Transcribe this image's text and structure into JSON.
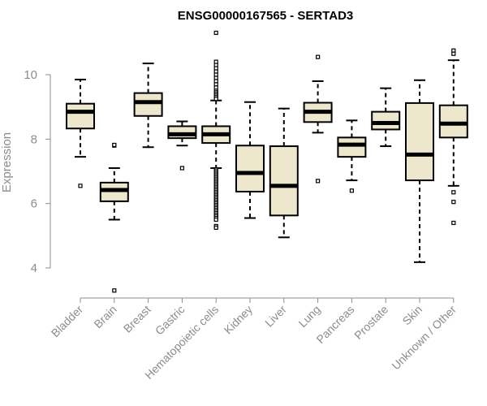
{
  "chart_data": {
    "type": "boxplot",
    "title": "ENSG00000167565 - SERTAD3",
    "xlabel": "",
    "ylabel": "Expression",
    "ylim": [
      3.0,
      11.5
    ],
    "yticks": [
      4,
      6,
      8,
      10
    ],
    "grid": false,
    "colors": {
      "box_fill": "#ede8cd",
      "stroke": "#000000",
      "axis": "#8c8c8c"
    },
    "categories": [
      "Bladder",
      "Brain",
      "Breast",
      "Gastric",
      "Hematopoietic cells",
      "Kidney",
      "Liver",
      "Lung",
      "Pancreas",
      "Prostate",
      "Skin",
      "Unknown / Other"
    ],
    "boxes": [
      {
        "whisker_low": 7.45,
        "q1": 8.33,
        "median": 8.85,
        "q3": 9.1,
        "whisker_high": 9.85,
        "outliers": [
          6.55
        ]
      },
      {
        "whisker_low": 5.5,
        "q1": 6.07,
        "median": 6.42,
        "q3": 6.65,
        "whisker_high": 7.1,
        "outliers": [
          7.8,
          7.82,
          3.3
        ]
      },
      {
        "whisker_low": 7.75,
        "q1": 8.72,
        "median": 9.15,
        "q3": 9.43,
        "whisker_high": 10.35,
        "outliers": []
      },
      {
        "whisker_low": 7.8,
        "q1": 8.03,
        "median": 8.15,
        "q3": 8.4,
        "whisker_high": 8.55,
        "outliers": [
          7.1
        ]
      },
      {
        "whisker_low": 7.1,
        "q1": 7.88,
        "median": 8.15,
        "q3": 8.4,
        "whisker_high": 9.2,
        "outliers": [
          11.3,
          10.4,
          10.3,
          10.2,
          10.1,
          10.0,
          9.9,
          9.8,
          9.7,
          9.6,
          9.5,
          9.45,
          9.4,
          9.35,
          9.3,
          9.25,
          7.05,
          7.0,
          6.95,
          6.9,
          6.85,
          6.8,
          6.75,
          6.7,
          6.65,
          6.6,
          6.55,
          6.5,
          6.45,
          6.4,
          6.35,
          6.3,
          6.25,
          6.2,
          6.15,
          6.1,
          6.05,
          6.0,
          5.95,
          5.9,
          5.85,
          5.8,
          5.75,
          5.7,
          5.65,
          5.6,
          5.55,
          5.5,
          5.3,
          5.25
        ]
      },
      {
        "whisker_low": 5.55,
        "q1": 6.37,
        "median": 6.95,
        "q3": 7.8,
        "whisker_high": 9.15,
        "outliers": []
      },
      {
        "whisker_low": 4.95,
        "q1": 5.63,
        "median": 6.55,
        "q3": 7.78,
        "whisker_high": 8.95,
        "outliers": []
      },
      {
        "whisker_low": 8.2,
        "q1": 8.53,
        "median": 8.85,
        "q3": 9.13,
        "whisker_high": 9.8,
        "outliers": [
          10.55,
          6.7
        ]
      },
      {
        "whisker_low": 6.72,
        "q1": 7.45,
        "median": 7.83,
        "q3": 8.05,
        "whisker_high": 8.58,
        "outliers": [
          6.4
        ]
      },
      {
        "whisker_low": 7.78,
        "q1": 8.3,
        "median": 8.5,
        "q3": 8.85,
        "whisker_high": 9.58,
        "outliers": []
      },
      {
        "whisker_low": 4.18,
        "q1": 6.72,
        "median": 7.52,
        "q3": 9.12,
        "whisker_high": 9.83,
        "outliers": []
      },
      {
        "whisker_low": 6.55,
        "q1": 8.05,
        "median": 8.48,
        "q3": 9.05,
        "whisker_high": 10.45,
        "outliers": [
          10.75,
          10.65,
          6.35,
          6.05,
          5.4
        ]
      }
    ]
  }
}
